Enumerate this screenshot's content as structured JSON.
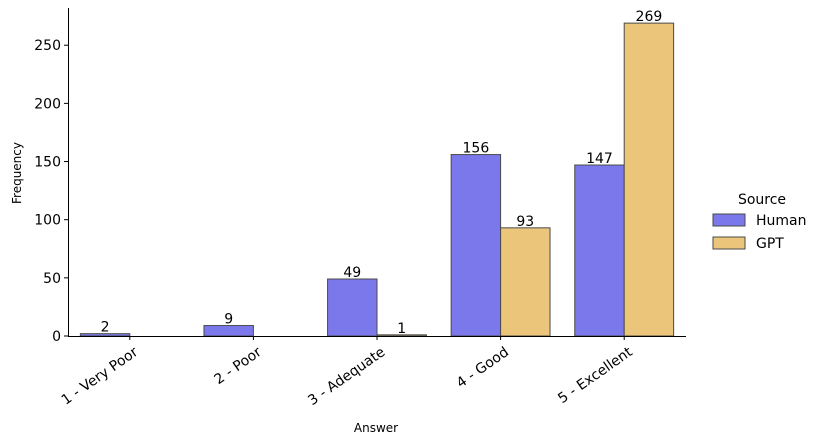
{
  "chart_data": {
    "type": "bar",
    "categories": [
      "1 - Very Poor",
      "2 - Poor",
      "3 - Adequate",
      "4 - Good",
      "5 - Excellent"
    ],
    "series": [
      {
        "name": "Human",
        "values": [
          2,
          9,
          49,
          156,
          147
        ],
        "color": "#7b78ec",
        "labels": [
          "2",
          "9",
          "49",
          "156",
          "147"
        ]
      },
      {
        "name": "GPT",
        "values": [
          0,
          0,
          1,
          93,
          269
        ],
        "color": "#eac57a",
        "labels": [
          "",
          "",
          "1",
          "93",
          "269"
        ]
      }
    ],
    "title": "",
    "xlabel": "Answer",
    "ylabel": "Frequency",
    "ylim": [
      0,
      282
    ],
    "yticks": [
      0,
      50,
      100,
      150,
      200,
      250
    ],
    "ytick_labels": [
      "0",
      "50",
      "100",
      "150",
      "200",
      "250"
    ],
    "legend_title": "Source",
    "legend_position": "right",
    "grid": false
  }
}
